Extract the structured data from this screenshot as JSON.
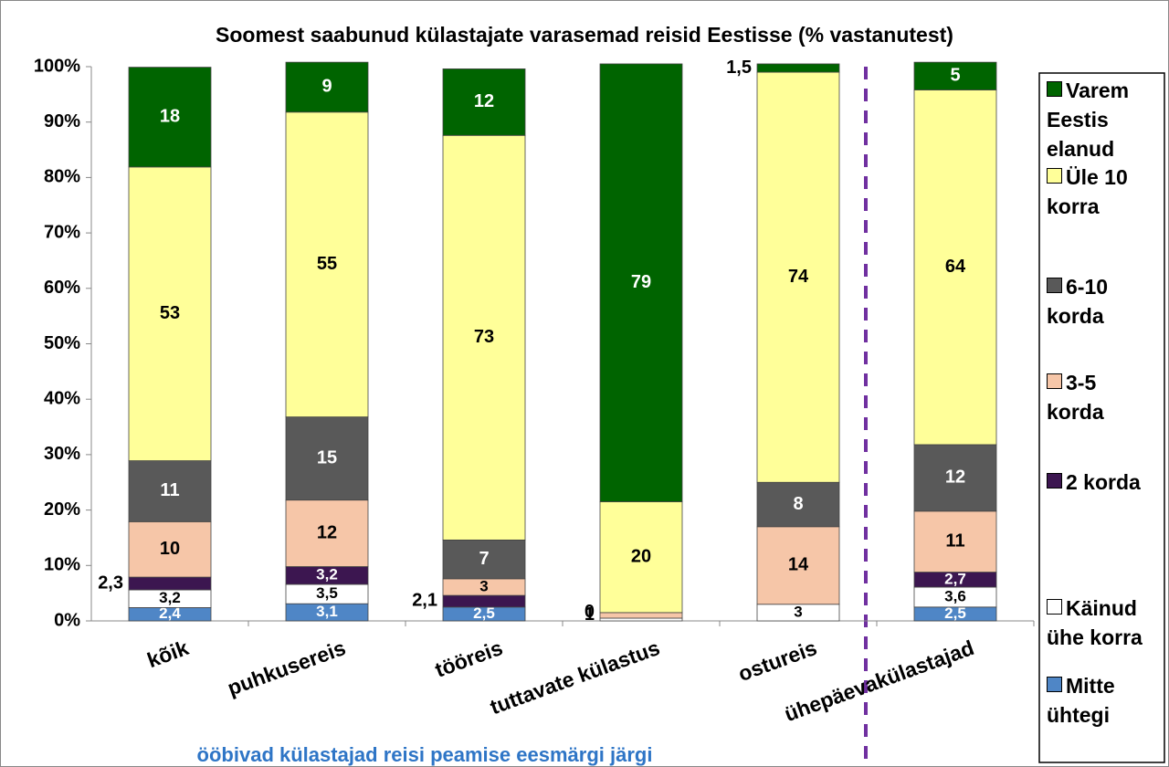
{
  "chart_data": {
    "type": "stacked_bar",
    "title": "Soomest saabunud külastajate varasemad reisid Eestisse (% vastanutest)",
    "annotation": "ööbivad külastajad reisi peamise eesmärgi järgi",
    "categories": [
      "kõik",
      "puhkusereis",
      "tööreis",
      "tuttavate külastus",
      "ostureis",
      "ühepäevakülastajad"
    ],
    "ylim": [
      0,
      100
    ],
    "yticks": [
      {
        "value": 0,
        "label": "0%"
      },
      {
        "value": 10,
        "label": "10%"
      },
      {
        "value": 20,
        "label": "20%"
      },
      {
        "value": 30,
        "label": "30%"
      },
      {
        "value": 40,
        "label": "40%"
      },
      {
        "value": 50,
        "label": "50%"
      },
      {
        "value": 60,
        "label": "60%"
      },
      {
        "value": 70,
        "label": "70%"
      },
      {
        "value": 80,
        "label": "80%"
      },
      {
        "value": 90,
        "label": "90%"
      },
      {
        "value": 100,
        "label": "100%"
      }
    ],
    "grid": false,
    "legend": "right",
    "series": [
      {
        "name": "Mitte ühtegi",
        "color": "#4f86c6",
        "label_color": "#ffffff",
        "values": [
          2.4,
          3.1,
          2.5,
          0,
          0,
          2.5
        ],
        "value_labels": [
          "2,4",
          "3,1",
          "2,5",
          null,
          null,
          "2,5"
        ]
      },
      {
        "name": "Käinud ühe korra",
        "color": "#ffffff",
        "label_color": "#000000",
        "values": [
          3.2,
          3.5,
          0,
          0.5,
          3,
          3.6
        ],
        "value_labels": [
          "3,2",
          "3,5",
          null,
          null,
          "3",
          "3,6"
        ]
      },
      {
        "name": "2 korda",
        "color": "#3c1650",
        "label_color": "#ffffff",
        "values": [
          2.3,
          3.2,
          2.1,
          0,
          0,
          2.7
        ],
        "value_labels": [
          "2,3",
          "3,2",
          "2,1",
          null,
          null,
          "2,7"
        ]
      },
      {
        "name": "3-5 korda",
        "color": "#f6c6a8",
        "label_color": "#000000",
        "values": [
          10,
          12,
          3,
          1,
          14,
          11
        ]
      },
      {
        "name": "6-10 korda",
        "color": "#595959",
        "label_color": "#ffffff",
        "values": [
          11,
          15,
          7,
          0,
          8,
          12
        ]
      },
      {
        "name": "Üle 10 korra",
        "color": "#ffff99",
        "label_color": "#000000",
        "values": [
          53,
          55,
          73,
          20,
          74,
          64
        ]
      },
      {
        "name": "Varem Eestis elanud",
        "color": "#006400",
        "label_color": "#ffffff",
        "values": [
          18,
          9,
          12,
          79,
          1.5,
          5
        ],
        "value_labels": [
          "18",
          "9",
          "12",
          "79",
          "1,5",
          "5"
        ]
      }
    ]
  }
}
